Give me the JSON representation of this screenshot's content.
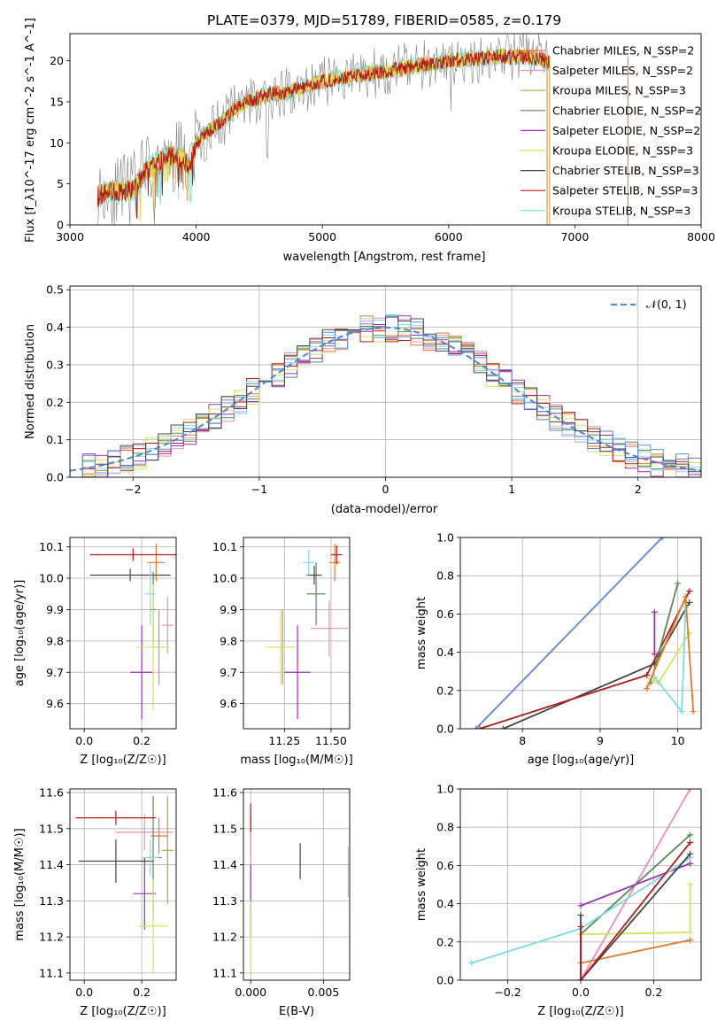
{
  "title": "PLATE=0379, MJD=51789, FIBERID=0585, z=0.179",
  "colors": {
    "chabrier_miles": "#e07b2a",
    "salpeter_miles": "#e88fc0",
    "kroupa_miles": "#b5a640",
    "chabrier_elodie": "#5a8a5a",
    "salpeter_elodie": "#9b30b5",
    "kroupa_elodie": "#d4e35a",
    "chabrier_stelib": "#454545",
    "salpeter_stelib": "#b01c1c",
    "kroupa_stelib": "#7fdbe3",
    "blue": "#5b8fe0",
    "grid": "#b0b0b0",
    "data": "#808080"
  },
  "panels": {
    "spectrum": {
      "xlabel": "wavelength [Angstrom, rest frame]",
      "ylabel": "Flux [f_λ10^-17 erg cm^-2 s^-1 A^-1]",
      "xlim": [
        3000,
        8000
      ],
      "ylim": [
        0,
        23.3
      ],
      "xticks": [
        "3000",
        "4000",
        "5000",
        "6000",
        "7000",
        "8000"
      ],
      "yticks": [
        "0",
        "5",
        "10",
        "15",
        "20"
      ],
      "legend": [
        {
          "name": "Chabrier MILES, N_SSP=2",
          "color_key": "chabrier_miles"
        },
        {
          "name": "Salpeter MILES, N_SSP=2",
          "color_key": "salpeter_miles"
        },
        {
          "name": "Kroupa MILES, N_SSP=3",
          "color_key": "kroupa_miles"
        },
        {
          "name": "Chabrier ELODIE, N_SSP=2",
          "color_key": "chabrier_elodie"
        },
        {
          "name": "Salpeter ELODIE, N_SSP=2",
          "color_key": "salpeter_elodie"
        },
        {
          "name": "Kroupa ELODIE, N_SSP=3",
          "color_key": "kroupa_elodie"
        },
        {
          "name": "Chabrier STELIB, N_SSP=3",
          "color_key": "chabrier_stelib"
        },
        {
          "name": "Salpeter STELIB, N_SSP=3",
          "color_key": "salpeter_stelib"
        },
        {
          "name": "Kroupa STELIB, N_SSP=3",
          "color_key": "kroupa_stelib"
        }
      ]
    },
    "residuals": {
      "xlabel": "(data-model)/error",
      "ylabel": "Normed distribution",
      "xlim": [
        -2.5,
        2.5
      ],
      "ylim": [
        0,
        0.51
      ],
      "xticks": [
        "−2",
        "−1",
        "0",
        "1",
        "2"
      ],
      "yticks": [
        "0.0",
        "0.1",
        "0.2",
        "0.3",
        "0.4",
        "0.5"
      ],
      "legend": "𝒩(0, 1)"
    },
    "age_vs_z": {
      "xlabel": "Z [log₁₀(Z/Z☉)]",
      "ylabel": "age  [log₁₀(age/yr)]",
      "xticks": [
        "0.0",
        "0.2"
      ],
      "yticks": [
        "9.6",
        "9.7",
        "9.8",
        "9.9",
        "10.0",
        "10.1"
      ]
    },
    "age_vs_mass": {
      "xlabel": "mass [log₁₀(M/M☉)]",
      "xticks": [
        "11.25",
        "11.50"
      ],
      "yticks": [
        "9.6",
        "9.7",
        "9.8",
        "9.9",
        "10.0",
        "10.1"
      ]
    },
    "weight_vs_age": {
      "xlabel": "age  [log₁₀(age/yr)]",
      "ylabel": "mass weight",
      "xticks": [
        "8",
        "9",
        "10"
      ],
      "yticks": [
        "0.0",
        "0.2",
        "0.4",
        "0.6",
        "0.8",
        "1.0"
      ]
    },
    "mass_vs_z": {
      "xlabel": "Z [log₁₀(Z/Z☉)]",
      "ylabel": "mass [log₁₀(M/M☉)]",
      "xticks": [
        "0.0",
        "0.2"
      ],
      "yticks": [
        "11.1",
        "11.2",
        "11.3",
        "11.4",
        "11.5",
        "11.6"
      ]
    },
    "mass_vs_ebv": {
      "xlabel": "E(B-V)",
      "xticks": [
        "0.000",
        "0.005"
      ],
      "yticks": [
        "11.1",
        "11.2",
        "11.3",
        "11.4",
        "11.5",
        "11.6"
      ]
    },
    "weight_vs_z": {
      "xlabel": "Z [log₁₀(Z/Z☉)]",
      "ylabel": "mass weight",
      "xticks": [
        "−0.2",
        "0.0",
        "0.2"
      ],
      "yticks": [
        "0.0",
        "0.2",
        "0.4",
        "0.6",
        "0.8",
        "1.0"
      ]
    }
  },
  "chart_data": [
    {
      "type": "line",
      "title": "PLATE=0379, MJD=51789, FIBERID=0585, z=0.179",
      "xlabel": "wavelength [Angstrom, rest frame]",
      "ylabel": "Flux [f_λ10^-17 erg cm^-2 s^-1 A^-1]",
      "xlim": [
        3000,
        8000
      ],
      "ylim": [
        0,
        23.3
      ],
      "grid": false,
      "legend_position": "top-right",
      "series_envelope": {
        "x": [
          3220,
          3300,
          3400,
          3500,
          3550,
          3600,
          3700,
          3800,
          3900,
          3950,
          4000,
          4100,
          4200,
          4300,
          4400,
          4500,
          4600,
          4700,
          4800,
          4900,
          5000,
          5200,
          5400,
          5600,
          5800,
          6000,
          6200,
          6400,
          6600,
          6700,
          6800
        ],
        "y": [
          3.5,
          4.2,
          4.0,
          4.4,
          5.5,
          6.5,
          7.5,
          8.5,
          8.0,
          7.0,
          10.0,
          11.5,
          12.5,
          14.0,
          15.0,
          15.5,
          16.0,
          16.0,
          16.5,
          17.0,
          17.5,
          18.0,
          18.5,
          19.0,
          19.5,
          20.0,
          20.2,
          20.5,
          20.5,
          20.3,
          20.0
        ]
      }
    },
    {
      "type": "line",
      "xlabel": "(data-model)/error",
      "ylabel": "Normed distribution",
      "xlim": [
        -2.5,
        2.5
      ],
      "ylim": [
        0,
        0.51
      ],
      "grid": true,
      "legend_position": "top-right",
      "gaussian": {
        "name": "𝒩(0, 1)",
        "mean": 0,
        "sigma": 1
      },
      "bin_width": 0.1
    },
    {
      "type": "scatter",
      "xlabel": "Z [log₁₀(Z/Z☉)]",
      "ylabel": "age  [log₁₀(age/yr)]",
      "xlim": [
        -0.05,
        0.32
      ],
      "ylim": [
        9.52,
        10.13
      ],
      "points": [
        {
          "x": 0.25,
          "y": 10.05,
          "xerr": 0.03,
          "yerr": 0.06,
          "color_key": "chabrier_miles"
        },
        {
          "x": 0.29,
          "y": 9.85,
          "xerr": 0.02,
          "yerr": 0.09,
          "color_key": "salpeter_miles"
        },
        {
          "x": 0.26,
          "y": 9.78,
          "xerr": 0.02,
          "yerr": 0.12,
          "color_key": "kroupa_miles"
        },
        {
          "x": 0.24,
          "y": 9.9,
          "xerr": 0.01,
          "yerr": 0.12,
          "color_key": "chabrier_elodie"
        },
        {
          "x": 0.2,
          "y": 9.7,
          "xerr": 0.04,
          "yerr": 0.15,
          "color_key": "salpeter_elodie"
        },
        {
          "x": 0.24,
          "y": 9.78,
          "xerr": 0.06,
          "yerr": 0.2,
          "color_key": "kroupa_elodie"
        },
        {
          "x": 0.16,
          "y": 10.01,
          "xerr": 0.14,
          "yerr": 0.02,
          "color_key": "chabrier_stelib"
        },
        {
          "x": 0.17,
          "y": 10.075,
          "xerr": 0.15,
          "yerr": 0.02,
          "color_key": "salpeter_stelib"
        },
        {
          "x": 0.23,
          "y": 9.95,
          "xerr": 0.02,
          "yerr": 0.1,
          "color_key": "kroupa_stelib"
        }
      ]
    },
    {
      "type": "scatter",
      "xlabel": "mass [log₁₀(M/M☉)]",
      "xlim": [
        11.03,
        11.6
      ],
      "ylim": [
        9.52,
        10.13
      ],
      "points": [
        {
          "x": 11.52,
          "y": 10.05,
          "xerr": 0.03,
          "yerr": 0.06,
          "color_key": "chabrier_miles"
        },
        {
          "x": 11.49,
          "y": 9.84,
          "xerr": 0.1,
          "yerr": 0.09,
          "color_key": "salpeter_miles"
        },
        {
          "x": 11.24,
          "y": 9.78,
          "xerr": 0.06,
          "yerr": 0.12,
          "color_key": "kroupa_miles"
        },
        {
          "x": 11.42,
          "y": 9.95,
          "xerr": 0.05,
          "yerr": 0.1,
          "color_key": "chabrier_elodie"
        },
        {
          "x": 11.32,
          "y": 9.7,
          "xerr": 0.07,
          "yerr": 0.15,
          "color_key": "salpeter_elodie"
        },
        {
          "x": 11.23,
          "y": 9.78,
          "xerr": 0.08,
          "yerr": 0.12,
          "color_key": "kroupa_elodie"
        },
        {
          "x": 11.41,
          "y": 10.01,
          "xerr": 0.04,
          "yerr": 0.03,
          "color_key": "chabrier_stelib"
        },
        {
          "x": 11.53,
          "y": 10.075,
          "xerr": 0.03,
          "yerr": 0.03,
          "color_key": "salpeter_stelib"
        },
        {
          "x": 11.38,
          "y": 10.05,
          "xerr": 0.03,
          "yerr": 0.04,
          "color_key": "kroupa_stelib"
        }
      ]
    },
    {
      "type": "line",
      "xlabel": "age  [log₁₀(age/yr)]",
      "ylabel": "mass weight",
      "xlim": [
        7.2,
        10.3
      ],
      "ylim": [
        0,
        1
      ],
      "grid": true,
      "series": [
        {
          "color_key": "salpeter_miles",
          "x": [
            7.4,
            9.8
          ],
          "y": [
            0.0,
            1.0
          ]
        },
        {
          "color_key": "blue",
          "x": [
            7.4,
            9.8
          ],
          "y": [
            0.0,
            1.0
          ]
        },
        {
          "color_key": "chabrier_stelib",
          "x": [
            7.75,
            9.7,
            10.15
          ],
          "y": [
            0.0,
            0.34,
            0.66
          ]
        },
        {
          "color_key": "salpeter_stelib",
          "x": [
            7.45,
            9.6,
            10.15
          ],
          "y": [
            0.0,
            0.28,
            0.72
          ]
        },
        {
          "color_key": "chabrier_elodie",
          "x": [
            9.65,
            10.0
          ],
          "y": [
            0.24,
            0.76
          ]
        },
        {
          "color_key": "salpeter_elodie",
          "x": [
            9.7,
            9.7
          ],
          "y": [
            0.39,
            0.61
          ]
        },
        {
          "color_key": "kroupa_elodie",
          "x": [
            9.65,
            9.75,
            10.15
          ],
          "y": [
            0.26,
            0.24,
            0.5
          ]
        },
        {
          "color_key": "kroupa_stelib",
          "x": [
            9.7,
            10.05,
            10.1
          ],
          "y": [
            0.27,
            0.09,
            0.64
          ]
        },
        {
          "color_key": "chabrier_miles",
          "x": [
            9.6,
            10.1,
            10.2
          ],
          "y": [
            0.21,
            0.69,
            0.09
          ]
        }
      ]
    },
    {
      "type": "scatter",
      "xlabel": "Z [log₁₀(Z/Z☉)]",
      "ylabel": "mass [log₁₀(M/M☉)]",
      "xlim": [
        -0.05,
        0.32
      ],
      "ylim": [
        11.08,
        11.61
      ],
      "points": [
        {
          "x": 0.26,
          "y": 11.48,
          "xerr": 0.03,
          "yerr": 0.05,
          "color_key": "chabrier_miles"
        },
        {
          "x": 0.21,
          "y": 11.49,
          "xerr": 0.1,
          "yerr": 0.05,
          "color_key": "salpeter_miles"
        },
        {
          "x": 0.29,
          "y": 11.44,
          "xerr": 0.02,
          "yerr": 0.15,
          "color_key": "kroupa_miles"
        },
        {
          "x": 0.24,
          "y": 11.42,
          "xerr": 0.03,
          "yerr": 0.17,
          "color_key": "chabrier_elodie"
        },
        {
          "x": 0.21,
          "y": 11.32,
          "xerr": 0.04,
          "yerr": 0.1,
          "color_key": "salpeter_elodie"
        },
        {
          "x": 0.24,
          "y": 11.23,
          "xerr": 0.05,
          "yerr": 0.13,
          "color_key": "kroupa_elodie"
        },
        {
          "x": 0.11,
          "y": 11.41,
          "xerr": 0.13,
          "yerr": 0.06,
          "color_key": "chabrier_stelib"
        },
        {
          "x": 0.11,
          "y": 11.53,
          "xerr": 0.14,
          "yerr": 0.02,
          "color_key": "salpeter_stelib"
        },
        {
          "x": 0.23,
          "y": 11.42,
          "xerr": 0.03,
          "yerr": 0.05,
          "color_key": "kroupa_stelib"
        }
      ]
    },
    {
      "type": "scatter",
      "xlabel": "E(B-V)",
      "xlim": [
        -0.0005,
        0.0068
      ],
      "ylim": [
        11.08,
        11.61
      ],
      "points": [
        {
          "x": 0.0,
          "y": 11.48,
          "yerr": 0.06,
          "color_key": "chabrier_miles"
        },
        {
          "x": 0.0,
          "y": 11.45,
          "yerr": 0.1,
          "color_key": "salpeter_miles"
        },
        {
          "x": 0.0,
          "y": 11.3,
          "yerr": 0.1,
          "color_key": "salpeter_elodie"
        },
        {
          "x": 0.0,
          "y": 11.2,
          "yerr": 0.1,
          "color_key": "kroupa_elodie"
        },
        {
          "x": 0.0,
          "y": 11.53,
          "yerr": 0.04,
          "color_key": "salpeter_stelib"
        },
        {
          "x": 0.0034,
          "y": 11.41,
          "yerr": 0.05,
          "color_key": "chabrier_stelib"
        },
        {
          "x": 0.0067,
          "y": 11.38,
          "yerr": 0.07,
          "color_key": "kroupa_stelib"
        }
      ]
    },
    {
      "type": "line",
      "xlabel": "Z [log₁₀(Z/Z☉)]",
      "ylabel": "mass weight",
      "xlim": [
        -0.33,
        0.33
      ],
      "ylim": [
        0,
        1
      ],
      "grid": true,
      "series": [
        {
          "color_key": "salpeter_miles",
          "x": [
            0.0,
            0.3
          ],
          "y": [
            0.0,
            1.0
          ]
        },
        {
          "color_key": "chabrier_elodie",
          "x": [
            0.0,
            0.3
          ],
          "y": [
            0.24,
            0.76
          ]
        },
        {
          "color_key": "salpeter_elodie",
          "x": [
            0.0,
            0.3
          ],
          "y": [
            0.39,
            0.61
          ]
        },
        {
          "color_key": "kroupa_stelib",
          "x": [
            -0.3,
            0.0,
            0.3
          ],
          "y": [
            0.09,
            0.27,
            0.64
          ]
        },
        {
          "color_key": "chabrier_miles",
          "x": [
            0.0,
            0.3
          ],
          "y": [
            0.09,
            0.21
          ]
        },
        {
          "color_key": "kroupa_elodie",
          "x": [
            0.0,
            0.3,
            0.3
          ],
          "y": [
            0.24,
            0.25,
            0.5
          ]
        },
        {
          "color_key": "chabrier_stelib",
          "x": [
            0.0,
            0.0,
            0.3
          ],
          "y": [
            0.34,
            0.0,
            0.66
          ]
        },
        {
          "color_key": "salpeter_stelib",
          "x": [
            0.0,
            0.0,
            0.3
          ],
          "y": [
            0.28,
            0.0,
            0.72
          ]
        }
      ]
    }
  ]
}
